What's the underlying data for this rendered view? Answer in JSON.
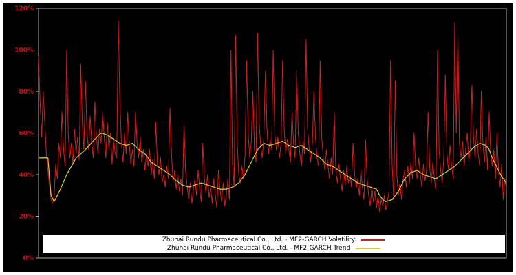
{
  "chart_data": {
    "type": "line",
    "title": "",
    "xlabel": "",
    "ylabel": "",
    "ylim": [
      0,
      120
    ],
    "x_range": [
      0,
      299
    ],
    "grid": false,
    "background": "#000000",
    "frame_color": "#a8a8a8",
    "tick_color": "#cc1111",
    "legend_position": "bottom-center",
    "yticks": [
      {
        "value": 0,
        "label": "0%"
      },
      {
        "value": 20,
        "label": "20%"
      },
      {
        "value": 40,
        "label": "40%"
      },
      {
        "value": 60,
        "label": "60%"
      },
      {
        "value": 80,
        "label": "80%"
      },
      {
        "value": 100,
        "label": "100%"
      },
      {
        "value": 120,
        "label": "120%"
      }
    ],
    "series": [
      {
        "name": "Zhuhai Rundu Pharmaceutical Co., Ltd. - MF2-GARCH Volatility",
        "color": "#cf2020",
        "width": 1,
        "values": [
          97,
          75,
          58,
          80,
          65,
          50,
          42,
          35,
          28,
          26,
          30,
          45,
          38,
          55,
          48,
          70,
          52,
          44,
          100,
          60,
          48,
          55,
          45,
          62,
          50,
          58,
          47,
          93,
          65,
          52,
          85,
          60,
          52,
          68,
          55,
          48,
          75,
          58,
          50,
          62,
          55,
          70,
          58,
          48,
          65,
          52,
          60,
          45,
          57,
          50,
          48,
          114,
          75,
          55,
          46,
          60,
          50,
          70,
          55,
          45,
          52,
          44,
          70,
          55,
          48,
          58,
          46,
          52,
          42,
          50,
          44,
          52,
          40,
          47,
          38,
          65,
          45,
          40,
          48,
          36,
          40,
          34,
          44,
          38,
          72,
          50,
          36,
          42,
          33,
          40,
          32,
          38,
          30,
          65,
          42,
          34,
          28,
          36,
          26,
          33,
          38,
          30,
          42,
          33,
          27,
          55,
          38,
          31,
          40,
          29,
          34,
          26,
          38,
          30,
          24,
          42,
          33,
          27,
          36,
          25,
          30,
          38,
          28,
          100,
          45,
          34,
          107,
          55,
          40,
          36,
          44,
          38,
          50,
          95,
          60,
          48,
          56,
          80,
          52,
          46,
          108,
          65,
          54,
          48,
          58,
          90,
          62,
          50,
          57,
          52,
          100,
          60,
          52,
          58,
          48,
          55,
          95,
          62,
          50,
          57,
          52,
          46,
          70,
          55,
          48,
          90,
          60,
          50,
          44,
          56,
          50,
          105,
          62,
          52,
          46,
          55,
          80,
          58,
          48,
          44,
          95,
          58,
          48,
          42,
          52,
          44,
          38,
          48,
          40,
          70,
          42,
          36,
          45,
          38,
          32,
          42,
          35,
          44,
          36,
          40,
          34,
          55,
          40,
          33,
          38,
          30,
          42,
          34,
          28,
          57,
          38,
          30,
          25,
          34,
          27,
          32,
          24,
          30,
          22,
          28,
          25,
          30,
          23,
          27,
          32,
          95,
          45,
          28,
          85,
          40,
          30,
          36,
          28,
          38,
          42,
          34,
          44,
          36,
          46,
          38,
          60,
          44,
          38,
          48,
          40,
          34,
          45,
          37,
          42,
          70,
          44,
          36,
          46,
          38,
          32,
          100,
          52,
          42,
          36,
          48,
          88,
          50,
          42,
          54,
          44,
          38,
          113,
          60,
          108,
          55,
          48,
          56,
          44,
          52,
          60,
          46,
          54,
          83,
          58,
          48,
          62,
          50,
          44,
          80,
          55,
          46,
          58,
          42,
          70,
          50,
          44,
          52,
          38,
          60,
          42,
          34,
          45,
          28,
          38,
          33
        ]
      },
      {
        "name": "Zhuhai Rundu Pharmaceutical Co., Ltd. - MF2-GARCH Trend",
        "color": "#d4c13c",
        "width": 1.3,
        "points": [
          [
            0,
            48
          ],
          [
            6,
            48
          ],
          [
            8,
            30
          ],
          [
            10,
            27
          ],
          [
            14,
            33
          ],
          [
            18,
            40
          ],
          [
            24,
            48
          ],
          [
            30,
            52
          ],
          [
            36,
            57
          ],
          [
            40,
            60
          ],
          [
            44,
            59
          ],
          [
            48,
            57
          ],
          [
            52,
            55
          ],
          [
            56,
            54
          ],
          [
            60,
            55
          ],
          [
            64,
            52
          ],
          [
            68,
            50
          ],
          [
            72,
            46
          ],
          [
            76,
            44
          ],
          [
            80,
            42
          ],
          [
            84,
            40
          ],
          [
            88,
            37
          ],
          [
            92,
            35
          ],
          [
            96,
            34
          ],
          [
            100,
            35
          ],
          [
            104,
            36
          ],
          [
            108,
            35
          ],
          [
            112,
            34
          ],
          [
            116,
            33
          ],
          [
            120,
            33
          ],
          [
            124,
            34
          ],
          [
            128,
            36
          ],
          [
            132,
            40
          ],
          [
            136,
            46
          ],
          [
            140,
            52
          ],
          [
            144,
            55
          ],
          [
            148,
            54
          ],
          [
            152,
            55
          ],
          [
            156,
            56
          ],
          [
            160,
            54
          ],
          [
            164,
            53
          ],
          [
            168,
            54
          ],
          [
            172,
            52
          ],
          [
            176,
            50
          ],
          [
            180,
            48
          ],
          [
            184,
            45
          ],
          [
            188,
            44
          ],
          [
            192,
            42
          ],
          [
            196,
            40
          ],
          [
            200,
            38
          ],
          [
            204,
            36
          ],
          [
            208,
            35
          ],
          [
            212,
            34
          ],
          [
            216,
            33
          ],
          [
            218,
            30
          ],
          [
            220,
            28
          ],
          [
            222,
            27
          ],
          [
            226,
            28
          ],
          [
            230,
            32
          ],
          [
            234,
            38
          ],
          [
            238,
            41
          ],
          [
            242,
            42
          ],
          [
            246,
            40
          ],
          [
            250,
            39
          ],
          [
            254,
            38
          ],
          [
            258,
            40
          ],
          [
            262,
            42
          ],
          [
            266,
            44
          ],
          [
            270,
            47
          ],
          [
            274,
            50
          ],
          [
            278,
            53
          ],
          [
            282,
            55
          ],
          [
            286,
            54
          ],
          [
            288,
            52
          ],
          [
            290,
            48
          ],
          [
            292,
            45
          ],
          [
            294,
            42
          ],
          [
            296,
            39
          ],
          [
            298,
            37
          ],
          [
            299,
            36
          ]
        ]
      }
    ]
  },
  "legend": {
    "volatility_label": "Zhuhai Rundu Pharmaceutical Co., Ltd. - MF2-GARCH Volatility",
    "trend_label": "Zhuhai Rundu Pharmaceutical Co., Ltd. - MF2-GARCH Trend"
  }
}
